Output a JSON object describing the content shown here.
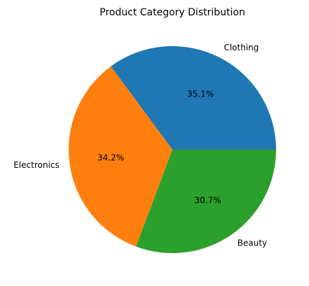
{
  "chart_data": {
    "type": "pie",
    "title": "Product Category Distribution",
    "categories": [
      "Clothing",
      "Electronics",
      "Beauty"
    ],
    "values": [
      35.1,
      34.2,
      30.7
    ],
    "percent_labels": [
      "35.1%",
      "34.2%",
      "30.7%"
    ],
    "colors": [
      "#1f77b4",
      "#ff7f0e",
      "#2ca02c"
    ],
    "start_angle_deg": 0,
    "direction": "counterclockwise",
    "legend": "none"
  }
}
